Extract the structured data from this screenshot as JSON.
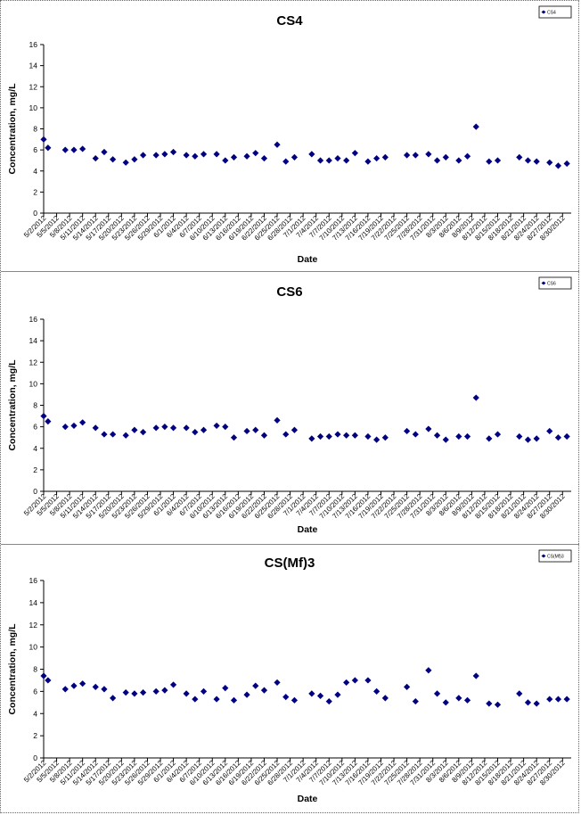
{
  "chart_data": [
    {
      "type": "scatter",
      "title": "CS4",
      "xlabel": "Date",
      "ylabel": "Concentration, mg/L",
      "ylim": [
        0,
        16
      ],
      "yticks": [
        0,
        2,
        4,
        6,
        8,
        10,
        12,
        14,
        16
      ],
      "legend": {
        "placement": "top-right",
        "label": "CS4"
      },
      "marker_color": "#000080",
      "xticks": [
        "5/2/2012",
        "5/5/2012",
        "5/8/2012",
        "5/11/2012",
        "5/14/2012",
        "5/17/2012",
        "5/20/2012",
        "5/23/2012",
        "5/26/2012",
        "5/29/2012",
        "6/1/2012",
        "6/4/2012",
        "6/7/2012",
        "6/10/2012",
        "6/13/2012",
        "6/16/2012",
        "6/19/2012",
        "6/22/2012",
        "6/25/2012",
        "6/28/2012",
        "7/1/2012",
        "7/4/2012",
        "7/7/2012",
        "7/10/2012",
        "7/13/2012",
        "7/16/2012",
        "7/19/2012",
        "7/22/2012",
        "7/25/2012",
        "7/28/2012",
        "7/31/2012",
        "8/3/2012",
        "8/6/2012",
        "8/9/2012",
        "8/12/2012",
        "8/15/2012",
        "8/18/2012",
        "8/21/2012",
        "8/24/2012",
        "8/27/2012",
        "8/30/2012"
      ],
      "x": [
        "5/2/2012",
        "5/3/2012",
        "5/7/2012",
        "5/9/2012",
        "5/11/2012",
        "5/14/2012",
        "5/16/2012",
        "5/18/2012",
        "5/21/2012",
        "5/23/2012",
        "5/25/2012",
        "5/28/2012",
        "5/30/2012",
        "6/1/2012",
        "6/4/2012",
        "6/6/2012",
        "6/8/2012",
        "6/11/2012",
        "6/13/2012",
        "6/15/2012",
        "6/18/2012",
        "6/20/2012",
        "6/22/2012",
        "6/25/2012",
        "6/27/2012",
        "6/29/2012",
        "7/3/2012",
        "7/5/2012",
        "7/7/2012",
        "7/9/2012",
        "7/11/2012",
        "7/13/2012",
        "7/16/2012",
        "7/18/2012",
        "7/20/2012",
        "7/25/2012",
        "7/27/2012",
        "7/30/2012",
        "8/1/2012",
        "8/3/2012",
        "8/6/2012",
        "8/8/2012",
        "8/10/2012",
        "8/13/2012",
        "8/15/2012",
        "8/20/2012",
        "8/22/2012",
        "8/24/2012",
        "8/27/2012",
        "8/29/2012",
        "8/31/2012"
      ],
      "values": [
        7.0,
        6.2,
        6.0,
        6.0,
        6.1,
        5.2,
        5.8,
        5.1,
        4.8,
        5.1,
        5.5,
        5.5,
        5.6,
        5.8,
        5.5,
        5.4,
        5.6,
        5.6,
        5.0,
        5.3,
        5.4,
        5.7,
        5.2,
        6.5,
        4.9,
        5.3,
        5.6,
        5.0,
        5.0,
        5.2,
        5.0,
        5.7,
        4.9,
        5.2,
        5.3,
        5.5,
        5.5,
        5.6,
        5.0,
        5.3,
        5.0,
        5.4,
        8.2,
        4.9,
        5.0,
        5.3,
        5.0,
        4.9,
        4.8,
        4.5,
        4.7
      ]
    },
    {
      "type": "scatter",
      "title": "CS6",
      "xlabel": "Date",
      "ylabel": "Concentration, mg/L",
      "ylim": [
        0,
        16
      ],
      "yticks": [
        0,
        2,
        4,
        6,
        8,
        10,
        12,
        14,
        16
      ],
      "legend": {
        "placement": "top-right",
        "label": "CS6"
      },
      "marker_color": "#000080",
      "xticks": [
        "5/2/2012",
        "5/5/2012",
        "5/8/2012",
        "5/11/2012",
        "5/14/2012",
        "5/17/2012",
        "5/20/2012",
        "5/23/2012",
        "5/26/2012",
        "5/29/2012",
        "6/1/2012",
        "6/4/2012",
        "6/7/2012",
        "6/10/2012",
        "6/13/2012",
        "6/16/2012",
        "6/19/2012",
        "6/22/2012",
        "6/25/2012",
        "6/28/2012",
        "7/1/2012",
        "7/4/2012",
        "7/7/2012",
        "7/10/2012",
        "7/13/2012",
        "7/16/2012",
        "7/19/2012",
        "7/22/2012",
        "7/25/2012",
        "7/28/2012",
        "7/31/2012",
        "8/3/2012",
        "8/6/2012",
        "8/9/2012",
        "8/12/2012",
        "8/15/2012",
        "8/18/2012",
        "8/21/2012",
        "8/24/2012",
        "8/27/2012",
        "8/30/2012"
      ],
      "x": [
        "5/2/2012",
        "5/3/2012",
        "5/7/2012",
        "5/9/2012",
        "5/11/2012",
        "5/14/2012",
        "5/16/2012",
        "5/18/2012",
        "5/21/2012",
        "5/23/2012",
        "5/25/2012",
        "5/28/2012",
        "5/30/2012",
        "6/1/2012",
        "6/4/2012",
        "6/6/2012",
        "6/8/2012",
        "6/11/2012",
        "6/13/2012",
        "6/15/2012",
        "6/18/2012",
        "6/20/2012",
        "6/22/2012",
        "6/25/2012",
        "6/27/2012",
        "6/29/2012",
        "7/3/2012",
        "7/5/2012",
        "7/7/2012",
        "7/9/2012",
        "7/11/2012",
        "7/13/2012",
        "7/16/2012",
        "7/18/2012",
        "7/20/2012",
        "7/25/2012",
        "7/27/2012",
        "7/30/2012",
        "8/1/2012",
        "8/3/2012",
        "8/6/2012",
        "8/8/2012",
        "8/10/2012",
        "8/13/2012",
        "8/15/2012",
        "8/20/2012",
        "8/22/2012",
        "8/24/2012",
        "8/27/2012",
        "8/29/2012",
        "8/31/2012"
      ],
      "values": [
        7.0,
        6.5,
        6.0,
        6.1,
        6.4,
        5.9,
        5.3,
        5.3,
        5.2,
        5.7,
        5.5,
        5.9,
        6.0,
        5.9,
        5.9,
        5.5,
        5.7,
        6.1,
        6.0,
        5.0,
        5.6,
        5.7,
        5.2,
        6.6,
        5.3,
        5.7,
        4.9,
        5.1,
        5.1,
        5.3,
        5.2,
        5.2,
        5.1,
        4.8,
        5.0,
        5.6,
        5.3,
        5.8,
        5.2,
        4.8,
        5.1,
        5.1,
        8.7,
        4.9,
        5.3,
        5.1,
        4.8,
        4.9,
        5.6,
        5.0,
        5.1
      ]
    },
    {
      "type": "scatter",
      "title": "CS(Mf)3",
      "xlabel": "Date",
      "ylabel": "Concentration, mg/L",
      "ylim": [
        0,
        16
      ],
      "yticks": [
        0,
        2,
        4,
        6,
        8,
        10,
        12,
        14,
        16
      ],
      "legend": {
        "placement": "top-right",
        "label": "CS(Mf)3"
      },
      "marker_color": "#000080",
      "xticks": [
        "5/2/2012",
        "5/5/2012",
        "5/8/2012",
        "5/11/2012",
        "5/14/2012",
        "5/17/2012",
        "5/20/2012",
        "5/23/2012",
        "5/26/2012",
        "5/29/2012",
        "6/1/2012",
        "6/4/2012",
        "6/7/2012",
        "6/10/2012",
        "6/13/2012",
        "6/16/2012",
        "6/19/2012",
        "6/22/2012",
        "6/25/2012",
        "6/28/2012",
        "7/1/2012",
        "7/4/2012",
        "7/7/2012",
        "7/10/2012",
        "7/13/2012",
        "7/16/2012",
        "7/19/2012",
        "7/22/2012",
        "7/25/2012",
        "7/28/2012",
        "7/31/2012",
        "8/3/2012",
        "8/6/2012",
        "8/9/2012",
        "8/12/2012",
        "8/15/2012",
        "8/18/2012",
        "8/21/2012",
        "8/24/2012",
        "8/27/2012",
        "8/30/2012"
      ],
      "x": [
        "5/2/2012",
        "5/3/2012",
        "5/7/2012",
        "5/9/2012",
        "5/11/2012",
        "5/14/2012",
        "5/16/2012",
        "5/18/2012",
        "5/21/2012",
        "5/23/2012",
        "5/25/2012",
        "5/28/2012",
        "5/30/2012",
        "6/1/2012",
        "6/4/2012",
        "6/6/2012",
        "6/8/2012",
        "6/11/2012",
        "6/13/2012",
        "6/15/2012",
        "6/18/2012",
        "6/20/2012",
        "6/22/2012",
        "6/25/2012",
        "6/27/2012",
        "6/29/2012",
        "7/3/2012",
        "7/5/2012",
        "7/7/2012",
        "7/9/2012",
        "7/11/2012",
        "7/13/2012",
        "7/16/2012",
        "7/18/2012",
        "7/20/2012",
        "7/25/2012",
        "7/27/2012",
        "7/30/2012",
        "8/1/2012",
        "8/3/2012",
        "8/6/2012",
        "8/8/2012",
        "8/10/2012",
        "8/13/2012",
        "8/15/2012",
        "8/20/2012",
        "8/22/2012",
        "8/24/2012",
        "8/27/2012",
        "8/29/2012",
        "8/31/2012"
      ],
      "values": [
        7.4,
        7.0,
        6.2,
        6.5,
        6.7,
        6.4,
        6.2,
        5.4,
        5.9,
        5.8,
        5.9,
        6.0,
        6.1,
        6.6,
        5.8,
        5.3,
        6.0,
        5.3,
        6.3,
        5.2,
        5.7,
        6.5,
        6.1,
        6.8,
        5.5,
        5.2,
        5.8,
        5.6,
        5.1,
        5.7,
        6.8,
        7.0,
        7.0,
        6.0,
        5.4,
        6.4,
        5.1,
        7.9,
        5.8,
        5.0,
        5.4,
        5.2,
        7.4,
        4.9,
        4.8,
        5.8,
        5.0,
        4.9,
        5.3,
        5.3,
        5.3
      ]
    }
  ]
}
